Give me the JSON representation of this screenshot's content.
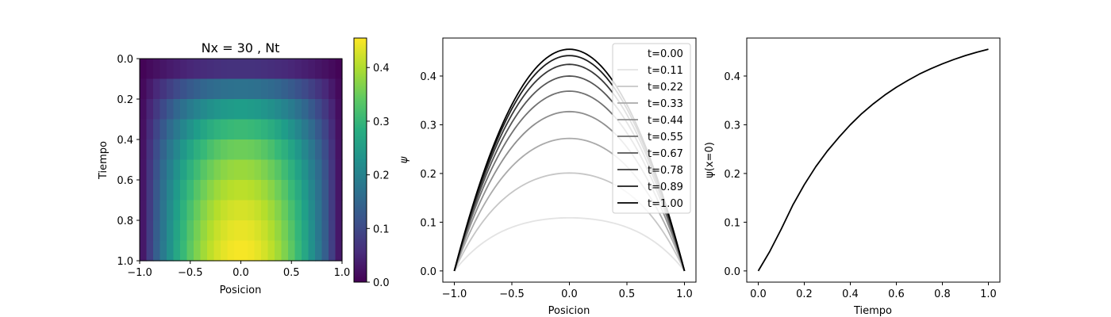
{
  "chart_data": [
    {
      "type": "heatmap",
      "title": "Nx = 30 , Nt",
      "xlabel": "Posicion",
      "ylabel": "Tiempo",
      "xlim": [
        -1.0,
        1.0
      ],
      "ylim": [
        1.0,
        0.0
      ],
      "grid": false,
      "x_cells": 30,
      "t_cells": 10,
      "x_ticks": [
        "−1.0",
        "−0.5",
        "0.0",
        "0.5",
        "1.0"
      ],
      "y_ticks": [
        "0.0",
        "0.2",
        "0.4",
        "0.6",
        "0.8",
        "1.0"
      ],
      "value_model": "psi(x,t) = (1 - exp(-2.95 t)) * 0.48 * (1 - x^2)",
      "colorbar": {
        "colormap": "viridis",
        "range": [
          0.0,
          0.455
        ],
        "ticks": [
          "0.0",
          "0.1",
          "0.2",
          "0.3",
          "0.4"
        ]
      }
    },
    {
      "type": "line",
      "title": "",
      "xlabel": "Posicion",
      "ylabel": "ψ",
      "xlim": [
        -1.1,
        1.1
      ],
      "ylim": [
        -0.023,
        0.478
      ],
      "grid": false,
      "x_ticks": [
        "−1.0",
        "−0.5",
        "0.0",
        "0.5",
        "1.0"
      ],
      "y_ticks": [
        "0.0",
        "0.1",
        "0.2",
        "0.3",
        "0.4"
      ],
      "legend_position": "top-right",
      "x": [
        -1.0,
        -0.9,
        -0.8,
        -0.7,
        -0.6,
        -0.5,
        -0.4,
        -0.3,
        -0.2,
        -0.1,
        0.0,
        0.1,
        0.2,
        0.3,
        0.4,
        0.5,
        0.6,
        0.7,
        0.8,
        0.9,
        1.0
      ],
      "series": [
        {
          "name": "t=0.00",
          "peak": 0.0,
          "color": "#ffffff"
        },
        {
          "name": "t=0.11",
          "peak": 0.109,
          "color": "#e3e3e3"
        },
        {
          "name": "t=0.22",
          "peak": 0.201,
          "color": "#c6c6c6"
        },
        {
          "name": "t=0.33",
          "peak": 0.272,
          "color": "#aaaaaa"
        },
        {
          "name": "t=0.44",
          "peak": 0.327,
          "color": "#8e8e8e"
        },
        {
          "name": "t=0.55",
          "peak": 0.369,
          "color": "#717171"
        },
        {
          "name": "t=0.67",
          "peak": 0.4,
          "color": "#555555"
        },
        {
          "name": "t=0.78",
          "peak": 0.424,
          "color": "#393939"
        },
        {
          "name": "t=0.89",
          "peak": 0.442,
          "color": "#1c1c1c"
        },
        {
          "name": "t=1.00",
          "peak": 0.455,
          "color": "#000000"
        }
      ],
      "curve_shape": "psi(x) = peak * (1 - x^2) * (1 + 0.5 * (1 - peak/0.455) * x^2)"
    },
    {
      "type": "line",
      "title": "",
      "xlabel": "Tiempo",
      "ylabel": "ψ(x=0)",
      "xlim": [
        -0.05,
        1.05
      ],
      "ylim": [
        -0.023,
        0.478
      ],
      "grid": false,
      "x_ticks": [
        "0.0",
        "0.2",
        "0.4",
        "0.6",
        "0.8",
        "1.0"
      ],
      "y_ticks": [
        "0.0",
        "0.1",
        "0.2",
        "0.3",
        "0.4"
      ],
      "series": [
        {
          "color": "#000000",
          "x": [
            0.0,
            0.05,
            0.1,
            0.15,
            0.2,
            0.25,
            0.3,
            0.35,
            0.4,
            0.45,
            0.5,
            0.55,
            0.6,
            0.65,
            0.7,
            0.75,
            0.8,
            0.85,
            0.9,
            0.95,
            1.0
          ],
          "values": [
            0.0,
            0.04,
            0.086,
            0.135,
            0.177,
            0.214,
            0.246,
            0.274,
            0.3,
            0.323,
            0.343,
            0.361,
            0.377,
            0.391,
            0.404,
            0.415,
            0.425,
            0.434,
            0.442,
            0.449,
            0.455
          ]
        }
      ]
    }
  ]
}
